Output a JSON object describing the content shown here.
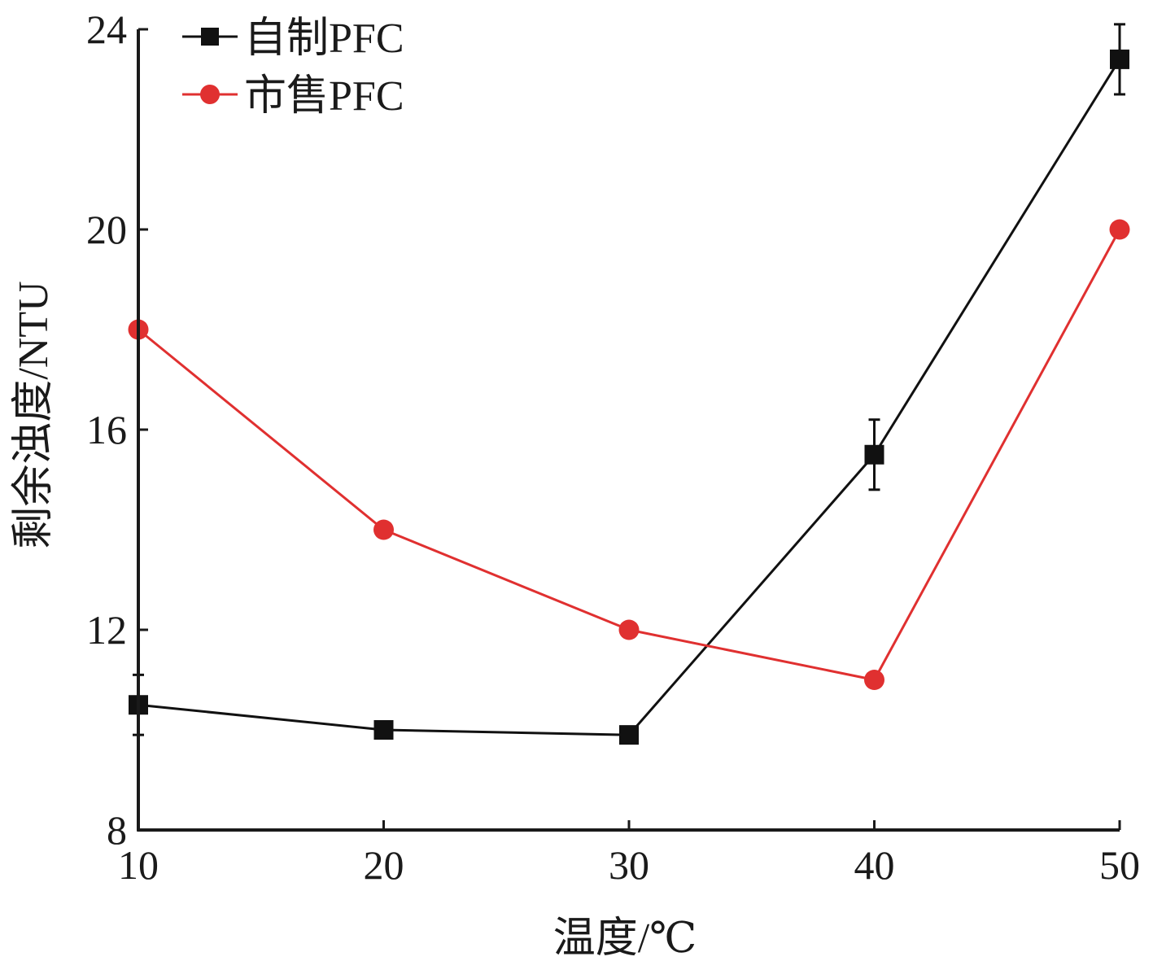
{
  "chart_data": {
    "type": "line",
    "title": "",
    "xlabel": "温度/℃",
    "ylabel": "剩余浊度/NTU",
    "x": [
      10,
      20,
      30,
      40,
      50
    ],
    "xlim": [
      10,
      50
    ],
    "ylim": [
      8,
      24
    ],
    "xticks": [
      "10",
      "20",
      "30",
      "40",
      "50"
    ],
    "yticks": [
      "8",
      "12",
      "16",
      "20",
      "24"
    ],
    "grid": false,
    "legend_position": "top-left",
    "series": [
      {
        "name": "自制PFC",
        "color": "#111111",
        "marker": "square",
        "values": [
          10.5,
          10.0,
          9.9,
          15.5,
          23.4
        ],
        "error": [
          0.6,
          0.0,
          0.0,
          0.7,
          0.7
        ]
      },
      {
        "name": "市售PFC",
        "color": "#e03030",
        "marker": "circle",
        "values": [
          18.0,
          14.0,
          12.0,
          11.0,
          20.0
        ],
        "error": [
          0,
          0,
          0,
          0,
          0
        ]
      }
    ]
  }
}
